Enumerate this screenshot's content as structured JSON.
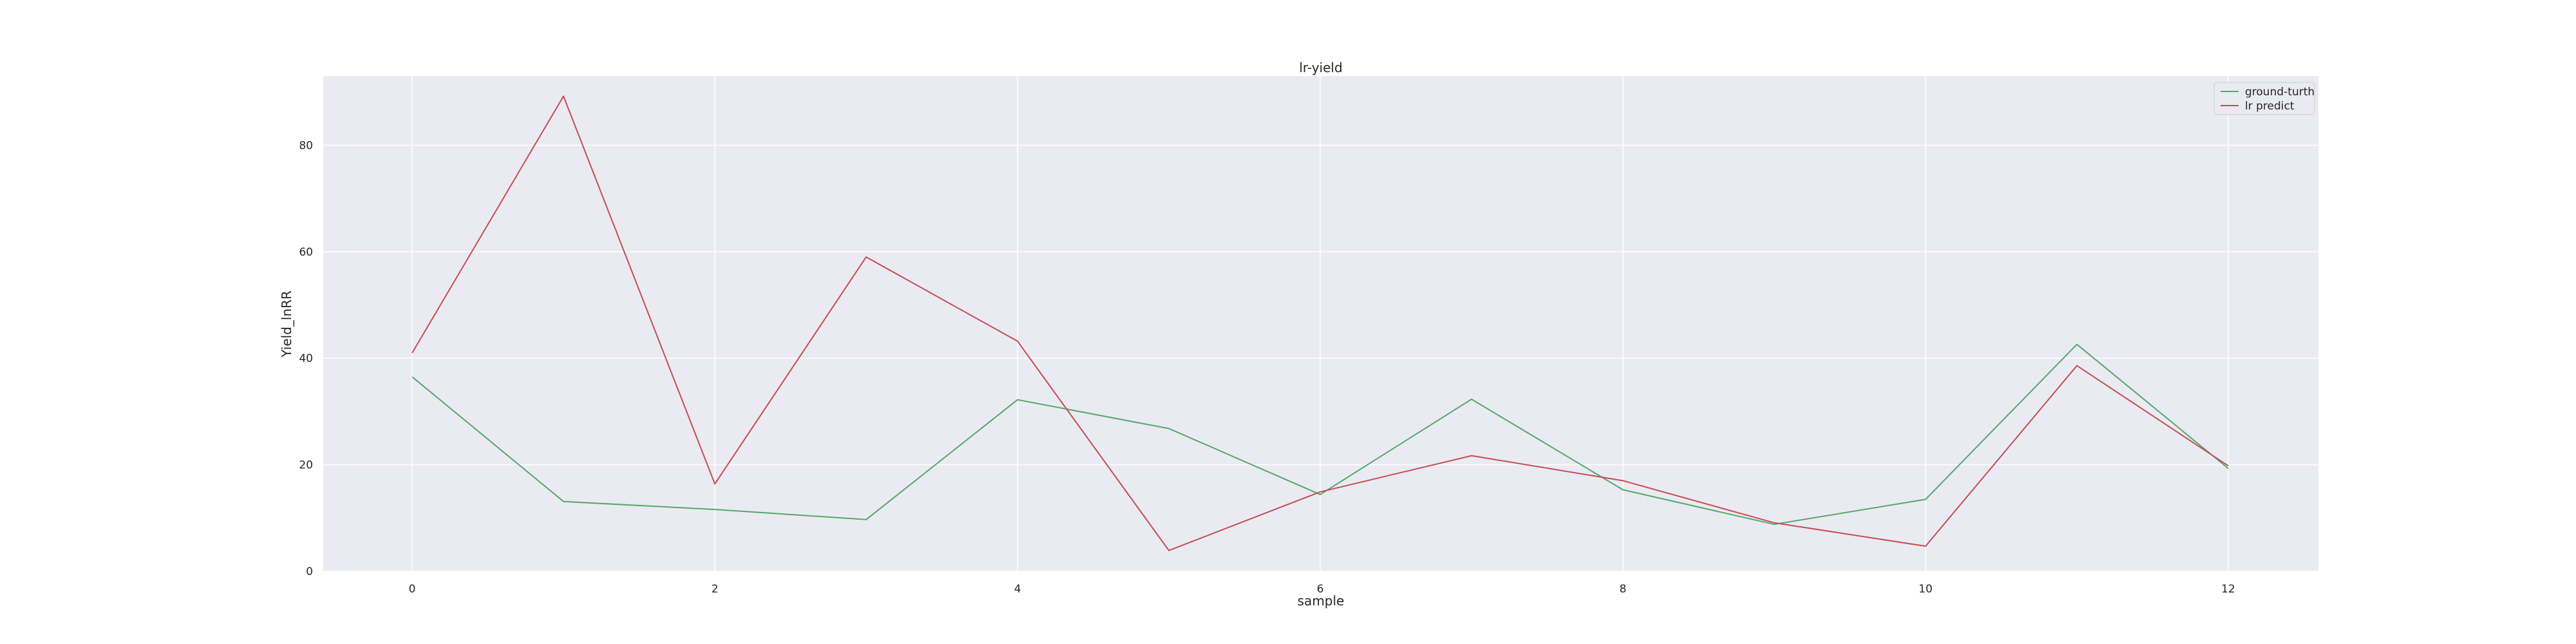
{
  "chart_data": {
    "type": "line",
    "title": "lr-yield",
    "xlabel": "sample",
    "ylabel": "Yield_lnRR",
    "x": [
      0,
      1,
      2,
      3,
      4,
      5,
      6,
      7,
      8,
      9,
      10,
      11,
      12
    ],
    "xlim": [
      -1,
      12.0
    ],
    "ylim": [
      0,
      93
    ],
    "xticks": [
      0,
      2,
      4,
      6,
      8,
      10,
      12
    ],
    "yticks": [
      0,
      20,
      40,
      60,
      80
    ],
    "grid": true,
    "legend_position": "top-right",
    "series": [
      {
        "name": "ground-turth",
        "color": "#55a868",
        "values": [
          36.5,
          13.1,
          11.6,
          9.7,
          32.2,
          26.8,
          14.4,
          32.3,
          15.3,
          8.8,
          13.5,
          42.6,
          19.3
        ]
      },
      {
        "name": "lr predict",
        "color": "#c44e52",
        "values": [
          41.0,
          89.2,
          16.4,
          59.0,
          43.2,
          3.9,
          14.9,
          21.7,
          17.0,
          9.1,
          4.7,
          38.6,
          19.8
        ]
      }
    ]
  }
}
